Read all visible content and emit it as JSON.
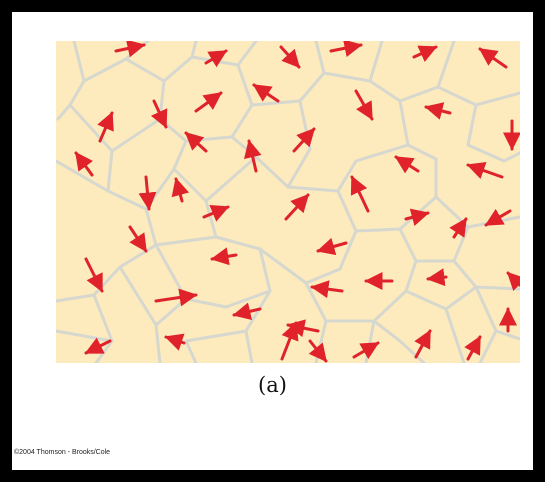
{
  "figure": {
    "caption": "(a)",
    "credit": "©2004 Thomson - Brooks/Cole"
  },
  "colors": {
    "background": "#fdeabd",
    "grain_boundary": "#d6d8cf",
    "arrow": "#e0222a",
    "page": "#ffffff",
    "border": "#000000"
  },
  "icons": {
    "arrow": "red-arrow-icon",
    "boundary": "grain-boundary"
  },
  "domain_count": 54
}
